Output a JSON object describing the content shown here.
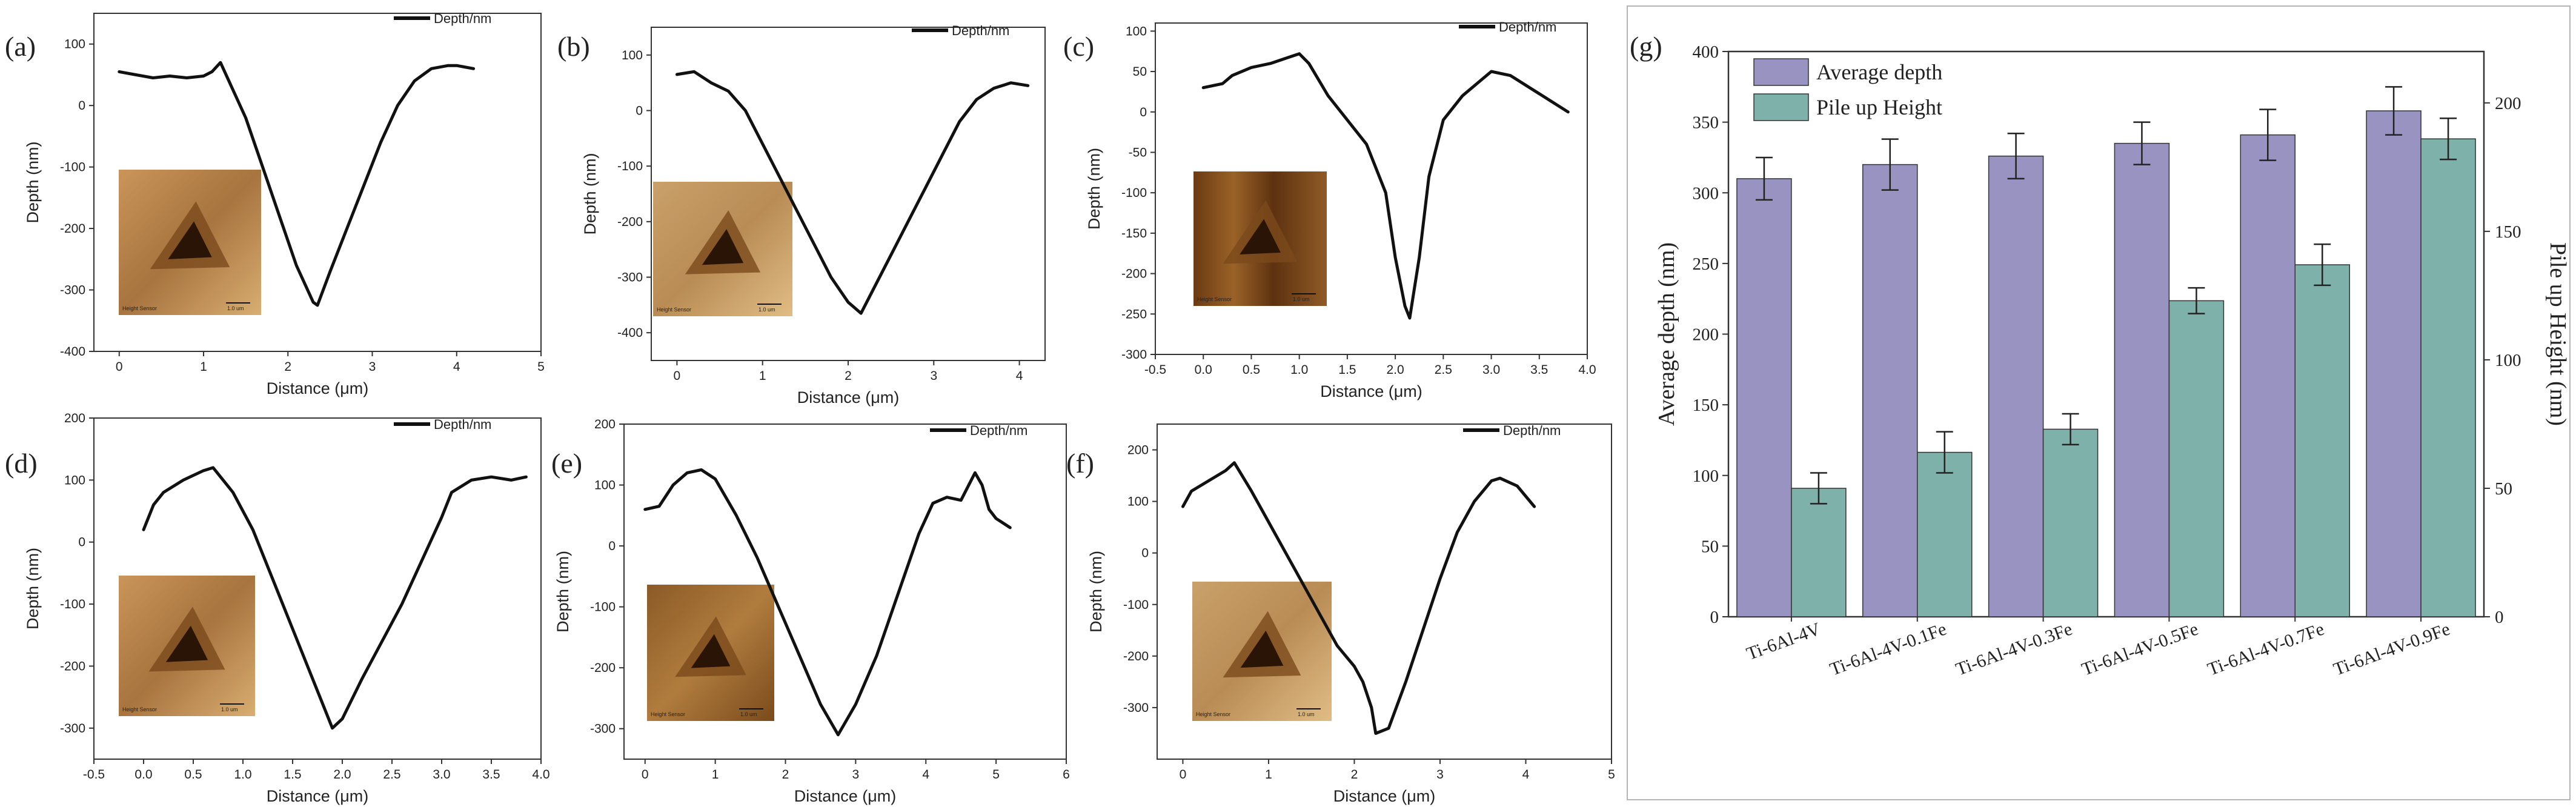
{
  "chart_data": [
    {
      "id": "a",
      "type": "line",
      "panel_label": "(a)",
      "legend": "Depth/nm",
      "xlabel": "Distance (μm)",
      "ylabel": "Depth (nm)",
      "xlim": [
        -0.3,
        5
      ],
      "ylim": [
        -400,
        150
      ],
      "xticks": [
        0,
        1,
        2,
        3,
        4,
        5
      ],
      "yticks": [
        -400,
        -300,
        -200,
        -100,
        0,
        100
      ],
      "inset_label": "Height Sensor",
      "inset_scale": "1.0 um",
      "x": [
        0,
        0.2,
        0.4,
        0.6,
        0.8,
        1.0,
        1.1,
        1.2,
        1.3,
        1.5,
        1.7,
        1.9,
        2.1,
        2.3,
        2.35,
        2.5,
        2.7,
        2.9,
        3.1,
        3.3,
        3.5,
        3.7,
        3.9,
        4.0,
        4.2
      ],
      "y": [
        55,
        50,
        45,
        48,
        45,
        48,
        55,
        70,
        40,
        -20,
        -100,
        -180,
        -260,
        -320,
        -325,
        -270,
        -200,
        -130,
        -60,
        0,
        40,
        60,
        65,
        65,
        60
      ]
    },
    {
      "id": "b",
      "type": "line",
      "panel_label": "(b)",
      "legend": "Depth/nm",
      "xlabel": "Distance (μm)",
      "ylabel": "Depth (nm)",
      "xlim": [
        -0.3,
        4.3
      ],
      "ylim": [
        -450,
        150
      ],
      "xticks": [
        0,
        1,
        2,
        3,
        4
      ],
      "yticks": [
        -400,
        -300,
        -200,
        -100,
        0,
        100
      ],
      "inset_label": "Height Sensor",
      "inset_scale": "1.0 um",
      "x": [
        0,
        0.2,
        0.4,
        0.6,
        0.8,
        1.0,
        1.2,
        1.4,
        1.6,
        1.8,
        2.0,
        2.15,
        2.3,
        2.5,
        2.7,
        2.9,
        3.1,
        3.3,
        3.5,
        3.7,
        3.9,
        4.1
      ],
      "y": [
        65,
        70,
        50,
        35,
        0,
        -60,
        -120,
        -180,
        -240,
        -300,
        -345,
        -365,
        -320,
        -260,
        -200,
        -140,
        -80,
        -20,
        20,
        40,
        50,
        45
      ]
    },
    {
      "id": "c",
      "type": "line",
      "panel_label": "(c)",
      "legend": "Depth/nm",
      "xlabel": "Distance (μm)",
      "ylabel": "Depth (nm)",
      "xlim": [
        -0.5,
        4.0
      ],
      "ylim": [
        -300,
        110
      ],
      "xticks": [
        -0.5,
        0.0,
        0.5,
        1.0,
        1.5,
        2.0,
        2.5,
        3.0,
        3.5,
        4.0
      ],
      "yticks": [
        -300,
        -250,
        -200,
        -150,
        -100,
        -50,
        0,
        50,
        100
      ],
      "inset_label": "Height Sensor",
      "inset_scale": "1.0 um",
      "x": [
        0,
        0.2,
        0.3,
        0.5,
        0.7,
        0.9,
        1.0,
        1.1,
        1.3,
        1.5,
        1.7,
        1.9,
        2.0,
        2.1,
        2.15,
        2.25,
        2.35,
        2.5,
        2.7,
        2.9,
        3.0,
        3.2,
        3.4,
        3.6,
        3.8
      ],
      "y": [
        30,
        35,
        45,
        55,
        60,
        68,
        72,
        60,
        20,
        -10,
        -40,
        -100,
        -180,
        -240,
        -255,
        -180,
        -80,
        -10,
        20,
        40,
        50,
        45,
        30,
        15,
        0
      ]
    },
    {
      "id": "d",
      "type": "line",
      "panel_label": "(d)",
      "legend": "Depth/nm",
      "xlabel": "Distance (μm)",
      "ylabel": "Depth (nm)",
      "xlim": [
        -0.5,
        4.0
      ],
      "ylim": [
        -350,
        200
      ],
      "xticks": [
        -0.5,
        0.0,
        0.5,
        1.0,
        1.5,
        2.0,
        2.5,
        3.0,
        3.5,
        4.0
      ],
      "yticks": [
        -300,
        -200,
        -100,
        0,
        100,
        200
      ],
      "inset_label": "Height Sensor",
      "inset_scale": "1.0 um",
      "x": [
        0,
        0.1,
        0.2,
        0.4,
        0.6,
        0.7,
        0.9,
        1.1,
        1.3,
        1.5,
        1.7,
        1.85,
        1.9,
        2.0,
        2.2,
        2.4,
        2.6,
        2.8,
        3.0,
        3.1,
        3.3,
        3.5,
        3.7,
        3.85
      ],
      "y": [
        20,
        60,
        80,
        100,
        115,
        120,
        80,
        20,
        -60,
        -140,
        -220,
        -280,
        -300,
        -285,
        -220,
        -160,
        -100,
        -30,
        40,
        80,
        100,
        105,
        100,
        105
      ]
    },
    {
      "id": "e",
      "type": "line",
      "panel_label": "(e)",
      "legend": "Depth/nm",
      "xlabel": "Distance (μm)",
      "ylabel": "Depth (nm)",
      "xlim": [
        -0.3,
        6
      ],
      "ylim": [
        -350,
        200
      ],
      "xticks": [
        0,
        1,
        2,
        3,
        4,
        5,
        6
      ],
      "yticks": [
        -300,
        -200,
        -100,
        0,
        100,
        200
      ],
      "inset_label": "Height Sensor",
      "inset_scale": "1.0 um",
      "x": [
        0,
        0.2,
        0.4,
        0.6,
        0.8,
        1.0,
        1.3,
        1.6,
        1.9,
        2.2,
        2.5,
        2.75,
        3.0,
        3.3,
        3.6,
        3.9,
        4.1,
        4.3,
        4.5,
        4.7,
        4.8,
        4.9,
        5.0,
        5.2
      ],
      "y": [
        60,
        65,
        100,
        120,
        125,
        110,
        50,
        -20,
        -100,
        -180,
        -260,
        -310,
        -260,
        -180,
        -80,
        20,
        70,
        80,
        75,
        120,
        100,
        60,
        45,
        30
      ]
    },
    {
      "id": "f",
      "type": "line",
      "panel_label": "(f)",
      "legend": "Depth/nm",
      "xlabel": "Distance (μm)",
      "ylabel": "Depth (nm)",
      "xlim": [
        -0.3,
        5
      ],
      "ylim": [
        -400,
        250
      ],
      "xticks": [
        0,
        1,
        2,
        3,
        4,
        5
      ],
      "yticks": [
        -300,
        -200,
        -100,
        0,
        100,
        200
      ],
      "inset_label": "Height Sensor",
      "inset_scale": "1.0 um",
      "x": [
        0,
        0.1,
        0.3,
        0.5,
        0.6,
        0.8,
        1.0,
        1.2,
        1.4,
        1.6,
        1.8,
        2.0,
        2.1,
        2.2,
        2.25,
        2.4,
        2.6,
        2.8,
        3.0,
        3.2,
        3.4,
        3.6,
        3.7,
        3.9,
        4.1
      ],
      "y": [
        90,
        120,
        140,
        160,
        175,
        120,
        60,
        0,
        -60,
        -120,
        -180,
        -220,
        -250,
        -300,
        -350,
        -340,
        -250,
        -150,
        -50,
        40,
        100,
        140,
        145,
        130,
        90
      ]
    },
    {
      "id": "g",
      "type": "bar",
      "panel_label": "(g)",
      "categories": [
        "Ti-6Al-4V",
        "Ti-6Al-4V-0.1Fe",
        "Ti-6Al-4V-0.3Fe",
        "Ti-6Al-4V-0.5Fe",
        "Ti-6Al-4V-0.7Fe",
        "Ti-6Al-4V-0.9Fe"
      ],
      "ylabel": "Average depth (nm)",
      "y2label": "Pile up Height (nm)",
      "ylim": [
        0,
        400
      ],
      "y2lim": [
        0,
        220
      ],
      "yticks": [
        0,
        50,
        100,
        150,
        200,
        250,
        300,
        350,
        400
      ],
      "y2ticks": [
        0,
        50,
        100,
        150,
        200
      ],
      "series": [
        {
          "name": "Average depth",
          "axis": "left",
          "color": "#9893c0",
          "values": [
            310,
            320,
            326,
            335,
            341,
            358
          ],
          "errors": [
            15,
            18,
            16,
            15,
            18,
            17
          ]
        },
        {
          "name": "Pile up Height",
          "axis": "right",
          "color": "#7eb1a9",
          "values": [
            50,
            64,
            73,
            123,
            137,
            186
          ],
          "errors": [
            6,
            8,
            6,
            5,
            8,
            8
          ]
        }
      ]
    }
  ]
}
